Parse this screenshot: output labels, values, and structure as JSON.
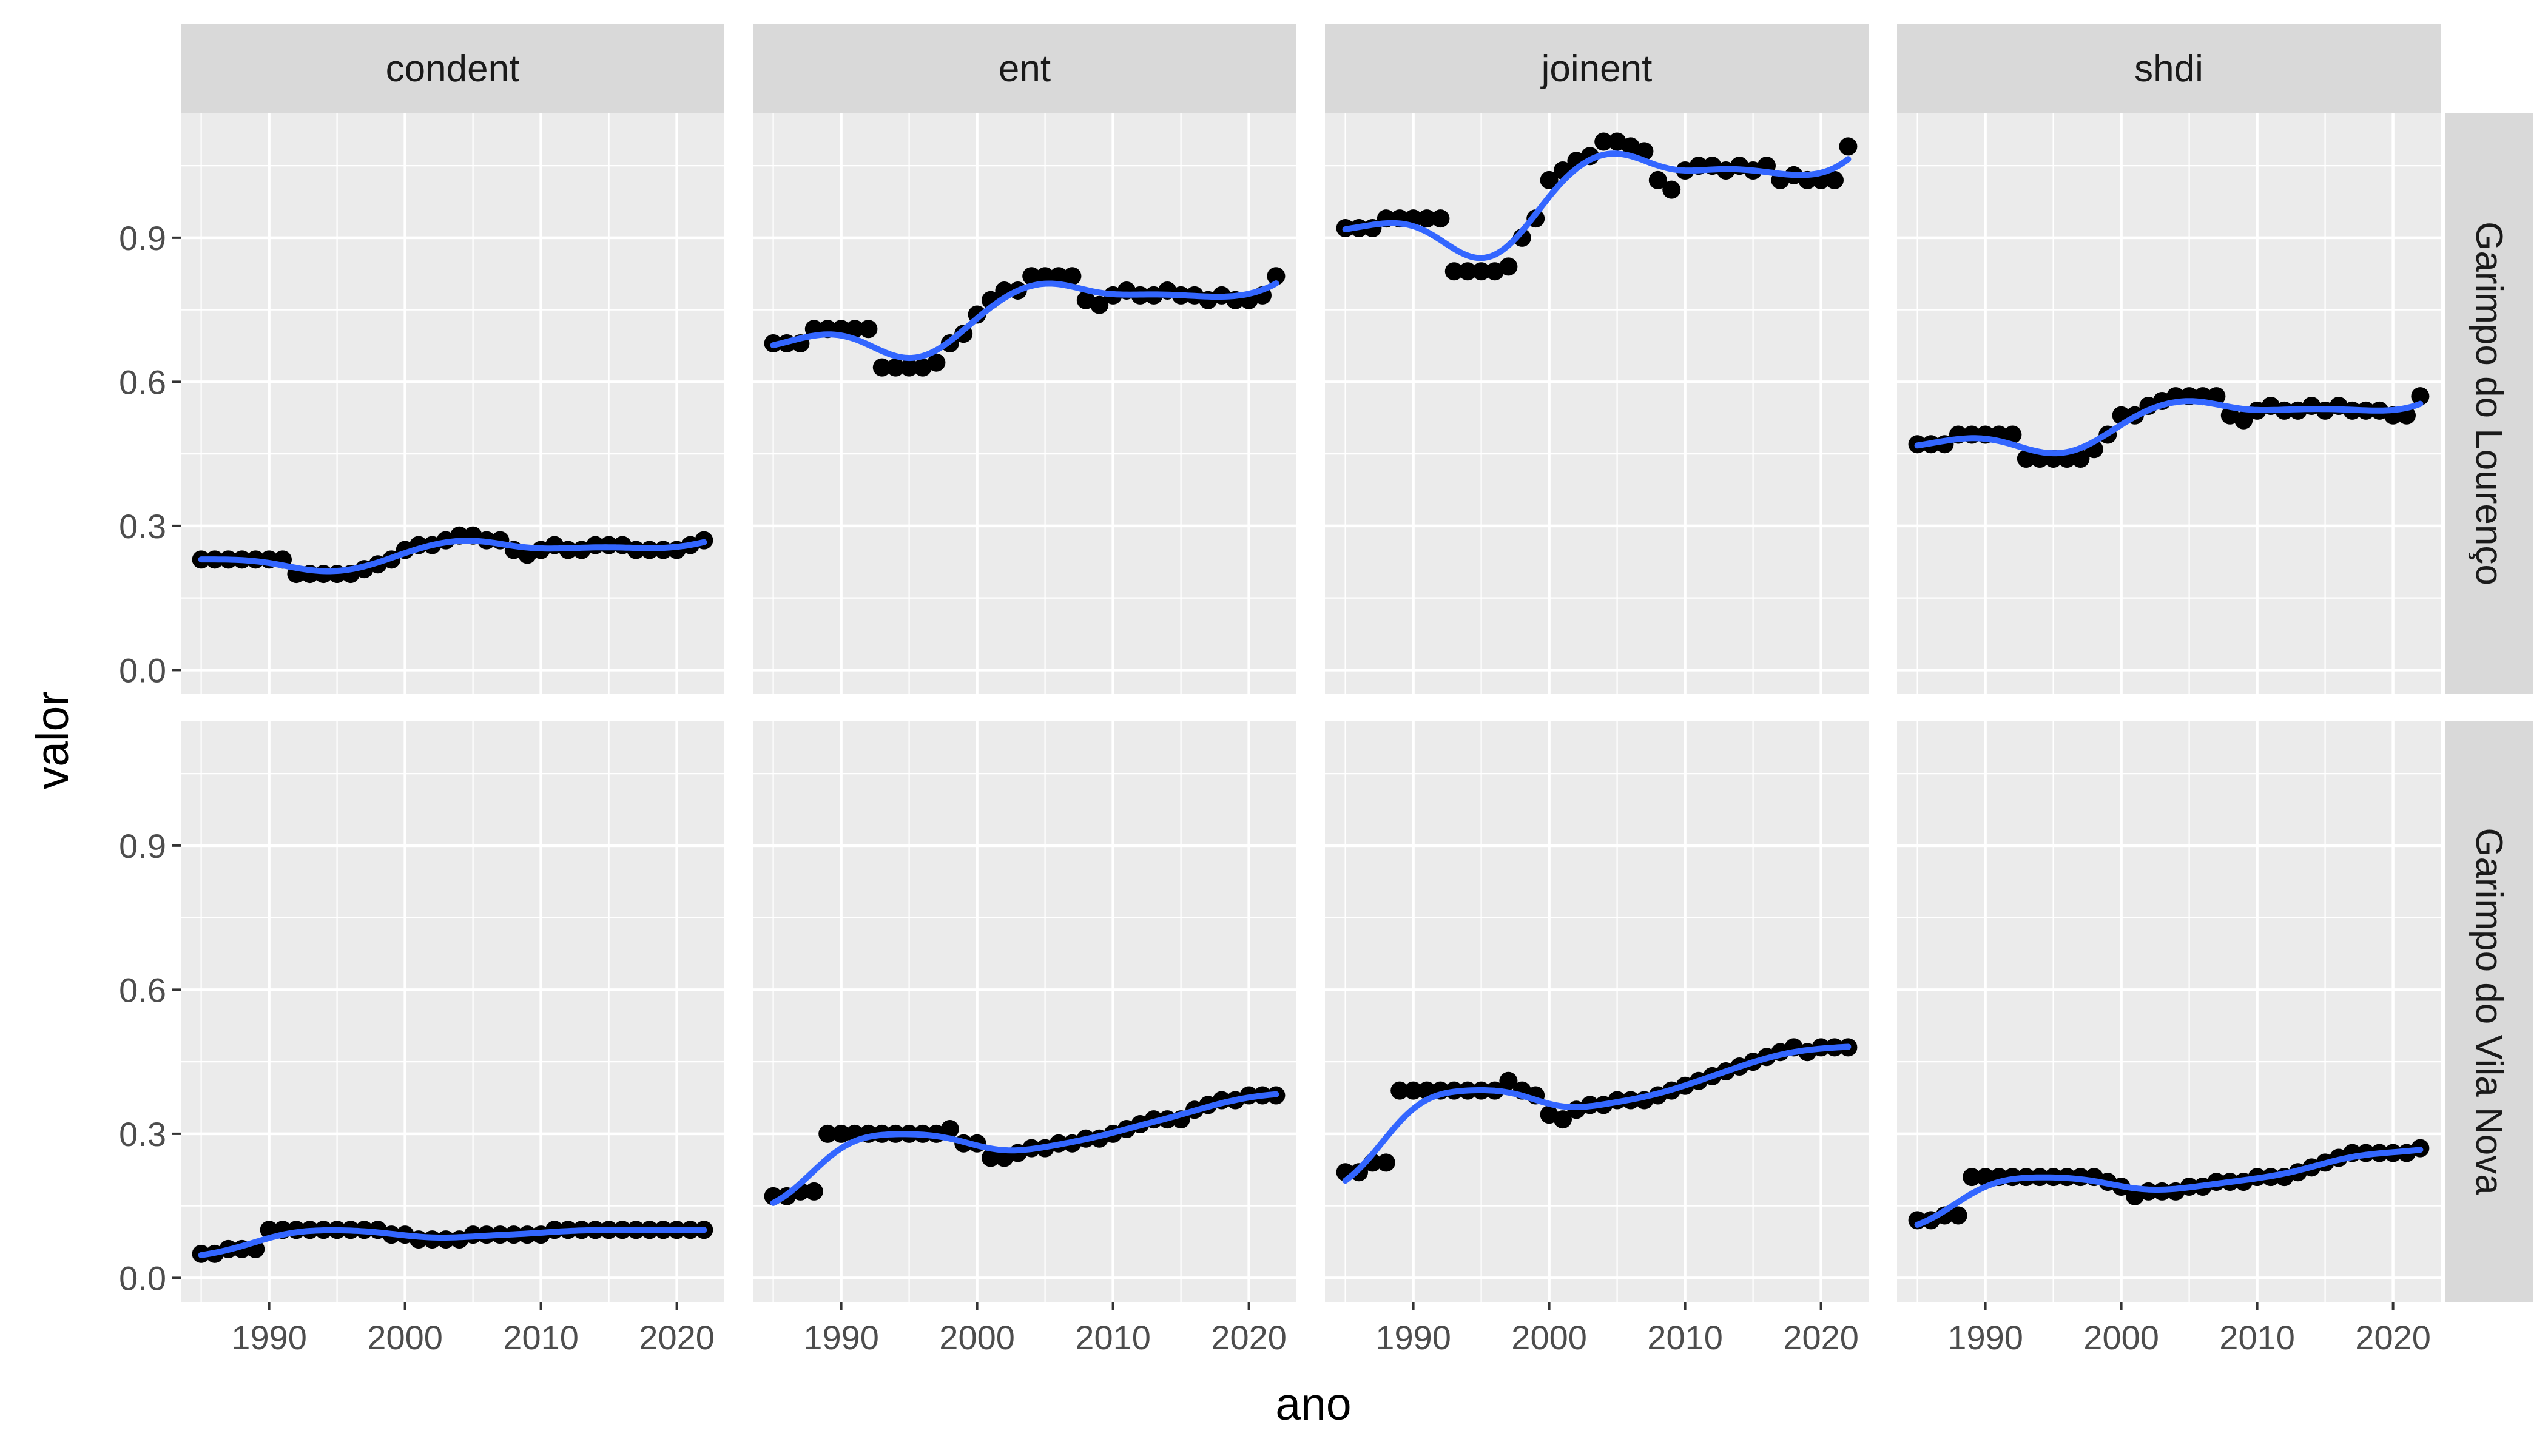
{
  "chart_data": {
    "type": "scatter",
    "layout": "facet_grid",
    "xlabel": "ano",
    "ylabel": "valor",
    "xlim": [
      1983.5,
      2023.5
    ],
    "ylim": [
      -0.05,
      1.16
    ],
    "x_ticks": [
      1990,
      2000,
      2010,
      2020
    ],
    "y_ticks": [
      0.0,
      0.3,
      0.6,
      0.9
    ],
    "y_tick_labels": [
      "0.0",
      "0.3",
      "0.6",
      "0.9"
    ],
    "col_facets": [
      "condent",
      "ent",
      "joinent",
      "shdi"
    ],
    "row_facets": [
      "Garimpo do Lourenço",
      "Garimpo do Vila Nova"
    ],
    "x": [
      1985,
      1986,
      1987,
      1988,
      1989,
      1990,
      1991,
      1992,
      1993,
      1994,
      1995,
      1996,
      1997,
      1998,
      1999,
      2000,
      2001,
      2002,
      2003,
      2004,
      2005,
      2006,
      2007,
      2008,
      2009,
      2010,
      2011,
      2012,
      2013,
      2014,
      2015,
      2016,
      2017,
      2018,
      2019,
      2020,
      2021,
      2022
    ],
    "panels": [
      {
        "row": "Garimpo do Lourenço",
        "col": "condent",
        "values": [
          0.23,
          0.23,
          0.23,
          0.23,
          0.23,
          0.23,
          0.23,
          0.2,
          0.2,
          0.2,
          0.2,
          0.2,
          0.21,
          0.22,
          0.23,
          0.25,
          0.26,
          0.26,
          0.27,
          0.28,
          0.28,
          0.27,
          0.27,
          0.25,
          0.24,
          0.25,
          0.26,
          0.25,
          0.25,
          0.26,
          0.26,
          0.26,
          0.25,
          0.25,
          0.25,
          0.25,
          0.26,
          0.27
        ]
      },
      {
        "row": "Garimpo do Lourenço",
        "col": "ent",
        "values": [
          0.68,
          0.68,
          0.68,
          0.71,
          0.71,
          0.71,
          0.71,
          0.71,
          0.63,
          0.63,
          0.63,
          0.63,
          0.64,
          0.68,
          0.7,
          0.74,
          0.77,
          0.79,
          0.79,
          0.82,
          0.82,
          0.82,
          0.82,
          0.77,
          0.76,
          0.78,
          0.79,
          0.78,
          0.78,
          0.79,
          0.78,
          0.78,
          0.77,
          0.78,
          0.77,
          0.77,
          0.78,
          0.82
        ]
      },
      {
        "row": "Garimpo do Lourenço",
        "col": "joinent",
        "values": [
          0.92,
          0.92,
          0.92,
          0.94,
          0.94,
          0.94,
          0.94,
          0.94,
          0.83,
          0.83,
          0.83,
          0.83,
          0.84,
          0.9,
          0.94,
          1.02,
          1.04,
          1.06,
          1.07,
          1.1,
          1.1,
          1.09,
          1.08,
          1.02,
          1.0,
          1.04,
          1.05,
          1.05,
          1.04,
          1.05,
          1.04,
          1.05,
          1.02,
          1.03,
          1.02,
          1.02,
          1.02,
          1.09
        ]
      },
      {
        "row": "Garimpo do Lourenço",
        "col": "shdi",
        "values": [
          0.47,
          0.47,
          0.47,
          0.49,
          0.49,
          0.49,
          0.49,
          0.49,
          0.44,
          0.44,
          0.44,
          0.44,
          0.44,
          0.46,
          0.49,
          0.53,
          0.53,
          0.55,
          0.56,
          0.57,
          0.57,
          0.57,
          0.57,
          0.53,
          0.52,
          0.54,
          0.55,
          0.54,
          0.54,
          0.55,
          0.54,
          0.55,
          0.54,
          0.54,
          0.54,
          0.53,
          0.53,
          0.57
        ]
      },
      {
        "row": "Garimpo do Vila Nova",
        "col": "condent",
        "values": [
          0.05,
          0.05,
          0.06,
          0.06,
          0.06,
          0.1,
          0.1,
          0.1,
          0.1,
          0.1,
          0.1,
          0.1,
          0.1,
          0.1,
          0.09,
          0.09,
          0.08,
          0.08,
          0.08,
          0.08,
          0.09,
          0.09,
          0.09,
          0.09,
          0.09,
          0.09,
          0.1,
          0.1,
          0.1,
          0.1,
          0.1,
          0.1,
          0.1,
          0.1,
          0.1,
          0.1,
          0.1,
          0.1
        ]
      },
      {
        "row": "Garimpo do Vila Nova",
        "col": "ent",
        "values": [
          0.17,
          0.17,
          0.18,
          0.18,
          0.3,
          0.3,
          0.3,
          0.3,
          0.3,
          0.3,
          0.3,
          0.3,
          0.3,
          0.31,
          0.28,
          0.28,
          0.25,
          0.25,
          0.26,
          0.27,
          0.27,
          0.28,
          0.28,
          0.29,
          0.29,
          0.3,
          0.31,
          0.32,
          0.33,
          0.33,
          0.33,
          0.35,
          0.36,
          0.37,
          0.37,
          0.38,
          0.38,
          0.38
        ]
      },
      {
        "row": "Garimpo do Vila Nova",
        "col": "joinent",
        "values": [
          0.22,
          0.22,
          0.24,
          0.24,
          0.39,
          0.39,
          0.39,
          0.39,
          0.39,
          0.39,
          0.39,
          0.39,
          0.41,
          0.39,
          0.38,
          0.34,
          0.33,
          0.35,
          0.36,
          0.36,
          0.37,
          0.37,
          0.37,
          0.38,
          0.39,
          0.4,
          0.41,
          0.42,
          0.43,
          0.44,
          0.45,
          0.46,
          0.47,
          0.48,
          0.47,
          0.48,
          0.48,
          0.48
        ]
      },
      {
        "row": "Garimpo do Vila Nova",
        "col": "shdi",
        "values": [
          0.12,
          0.12,
          0.13,
          0.13,
          0.21,
          0.21,
          0.21,
          0.21,
          0.21,
          0.21,
          0.21,
          0.21,
          0.21,
          0.21,
          0.2,
          0.19,
          0.17,
          0.18,
          0.18,
          0.18,
          0.19,
          0.19,
          0.2,
          0.2,
          0.2,
          0.21,
          0.21,
          0.21,
          0.22,
          0.23,
          0.24,
          0.25,
          0.26,
          0.26,
          0.26,
          0.26,
          0.26,
          0.27
        ]
      }
    ],
    "smooth_line": true,
    "grid": true,
    "colors": {
      "point": "#000000",
      "smooth": "#3366FF",
      "panel_bg": "#EBEBEB",
      "grid": "#FFFFFF",
      "strip_bg": "#D9D9D9",
      "strip_text": "#1A1A1A",
      "tick_text": "#4D4D4D",
      "tick_mark": "#333333"
    }
  }
}
